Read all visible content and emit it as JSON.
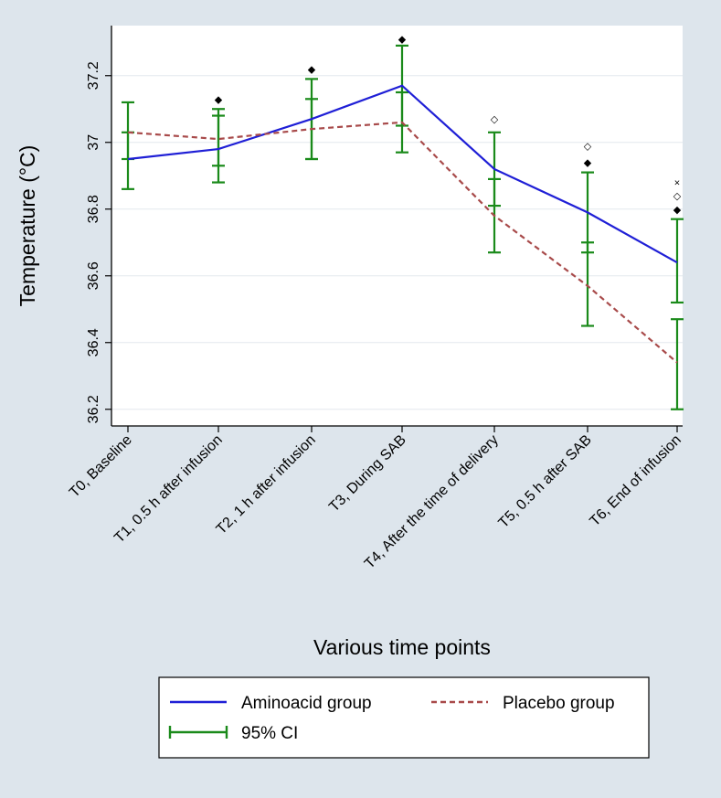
{
  "chart_data": {
    "type": "line",
    "title": "",
    "xlabel": "Various time points",
    "ylabel": "Temperature (°C)",
    "ylim": [
      36.15,
      37.35
    ],
    "yticks": [
      "36.2",
      "36.4",
      "36.6",
      "36.8",
      "37",
      "37.2"
    ],
    "categories": [
      "T0, Baseline",
      "T1, 0.5 h after infusion",
      "T2, 1 h after infusion",
      "T3, During SAB",
      "T4, After the time of delivery",
      "T5, 0.5 h after SAB",
      "T6, End of infusion"
    ],
    "series": [
      {
        "name": "Aminoacid group",
        "color": "#1f1fd6",
        "style": "solid",
        "values": [
          36.95,
          36.98,
          37.07,
          37.17,
          36.92,
          36.79,
          36.64
        ],
        "ci_low": [
          36.86,
          36.93,
          36.95,
          37.05,
          36.81,
          36.67,
          36.52
        ],
        "ci_high": [
          37.03,
          37.08,
          37.13,
          37.29,
          37.03,
          36.91,
          36.77
        ]
      },
      {
        "name": "Placebo group",
        "color": "#a84a4a",
        "style": "dashed",
        "values": [
          37.03,
          37.01,
          37.04,
          37.06,
          36.78,
          36.57,
          36.34
        ],
        "ci_low": [
          36.95,
          36.88,
          36.95,
          36.97,
          36.67,
          36.45,
          36.2
        ],
        "ci_high": [
          37.12,
          37.1,
          37.19,
          37.15,
          36.89,
          36.7,
          36.47
        ]
      }
    ],
    "markers": [
      {
        "category_index": 1,
        "value": 37.13,
        "symbol": "◆"
      },
      {
        "category_index": 2,
        "value": 37.22,
        "symbol": "◆"
      },
      {
        "category_index": 3,
        "value": 37.31,
        "symbol": "◆"
      },
      {
        "category_index": 4,
        "value": 37.07,
        "symbol": "◇"
      },
      {
        "category_index": 5,
        "value": 36.99,
        "symbol": "◇"
      },
      {
        "category_index": 5,
        "value": 36.94,
        "symbol": "◆"
      },
      {
        "category_index": 6,
        "value": 36.88,
        "symbol": "×"
      },
      {
        "category_index": 6,
        "value": 36.84,
        "symbol": "◇"
      },
      {
        "category_index": 6,
        "value": 36.8,
        "symbol": "◆"
      }
    ],
    "ci_label": "95% CI",
    "ci_color": "#1a8a1a",
    "grid": true,
    "legend_position": "bottom"
  }
}
